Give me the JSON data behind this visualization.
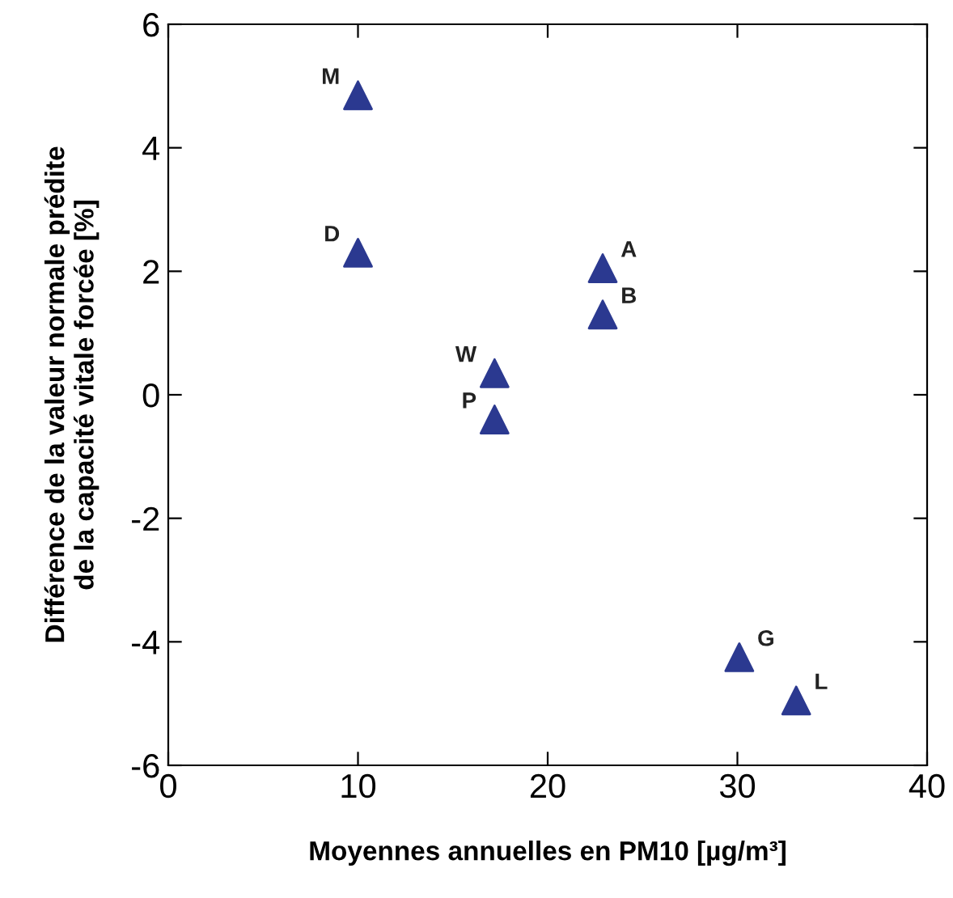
{
  "chart_data": {
    "type": "scatter",
    "xlabel": "Moyennes annuelles en PM10 [µg/m³]",
    "ylabel": "Différence de la valeur normale prédite\nde la capacité vitale forcée [%]",
    "x": [
      10,
      10,
      22.9,
      22.9,
      17.2,
      17.2,
      30.1,
      33.1
    ],
    "series": [
      {
        "color": "#2b3990",
        "values": [
          4.85,
          2.3,
          2.05,
          1.3,
          0.35,
          -0.4,
          -4.25,
          -4.95
        ]
      }
    ],
    "annotations": [
      {
        "text": "M",
        "x": 10,
        "y": 4.85
      },
      {
        "text": "D",
        "x": 10,
        "y": 2.3
      },
      {
        "text": "A",
        "x": 22.9,
        "y": 2.05
      },
      {
        "text": "B",
        "x": 22.9,
        "y": 1.3
      },
      {
        "text": "W",
        "x": 17.2,
        "y": 0.35
      },
      {
        "text": "P",
        "x": 17.2,
        "y": -0.4
      },
      {
        "text": "G",
        "x": 30.1,
        "y": -4.25
      },
      {
        "text": "L",
        "x": 33.1,
        "y": -4.95
      }
    ],
    "xlim": [
      0,
      40
    ],
    "xticks": [
      0,
      10,
      20,
      30,
      40
    ],
    "ylim": [
      -6,
      6
    ],
    "yticks": [
      -6,
      -4,
      -2,
      0,
      2,
      4,
      6
    ],
    "marker": "triangle",
    "grid": false,
    "legend": false
  }
}
